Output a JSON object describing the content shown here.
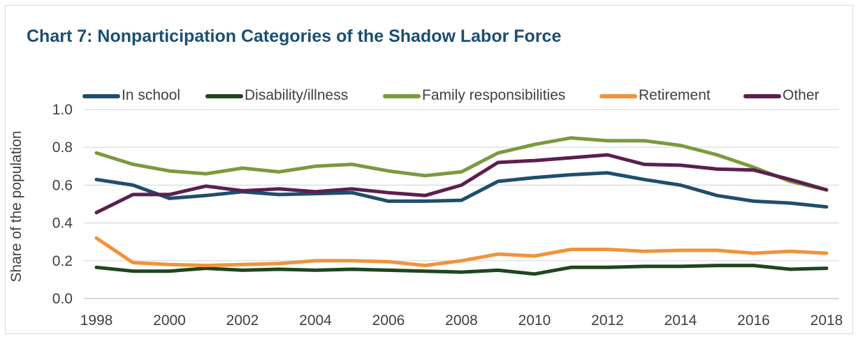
{
  "chart_data": {
    "type": "line",
    "title": "Chart 7: Nonparticipation Categories of the Shadow Labor Force",
    "xlabel": "",
    "ylabel": "Share of the population",
    "ylim": [
      0.0,
      1.0
    ],
    "yticks": [
      "0.0",
      "0.2",
      "0.4",
      "0.6",
      "0.8",
      "1.0"
    ],
    "xticks": [
      "1998",
      "2000",
      "2002",
      "2004",
      "2006",
      "2008",
      "2010",
      "2012",
      "2014",
      "2016",
      "2018"
    ],
    "grid": true,
    "legend_position": "top",
    "x": [
      1998,
      1999,
      2000,
      2001,
      2002,
      2003,
      2004,
      2005,
      2006,
      2007,
      2008,
      2009,
      2010,
      2011,
      2012,
      2013,
      2014,
      2015,
      2016,
      2017,
      2018
    ],
    "series": [
      {
        "name": "In school",
        "color": "#1f4e6e",
        "values": [
          0.63,
          0.6,
          0.53,
          0.545,
          0.565,
          0.55,
          0.555,
          0.56,
          0.515,
          0.515,
          0.52,
          0.62,
          0.64,
          0.655,
          0.665,
          0.63,
          0.6,
          0.545,
          0.515,
          0.505,
          0.485
        ]
      },
      {
        "name": "Disability/illness",
        "color": "#1e4620",
        "values": [
          0.165,
          0.145,
          0.145,
          0.16,
          0.15,
          0.155,
          0.15,
          0.155,
          0.15,
          0.145,
          0.14,
          0.15,
          0.13,
          0.165,
          0.165,
          0.17,
          0.17,
          0.175,
          0.175,
          0.155,
          0.16
        ]
      },
      {
        "name": "Family responsibilities",
        "color": "#7b9a3c",
        "values": [
          0.77,
          0.71,
          0.675,
          0.66,
          0.69,
          0.67,
          0.7,
          0.71,
          0.675,
          0.65,
          0.67,
          0.77,
          0.815,
          0.85,
          0.835,
          0.835,
          0.81,
          0.76,
          0.695,
          0.62,
          0.575
        ]
      },
      {
        "name": "Retirement",
        "color": "#f2923a",
        "values": [
          0.32,
          0.19,
          0.18,
          0.175,
          0.18,
          0.185,
          0.2,
          0.2,
          0.195,
          0.175,
          0.2,
          0.235,
          0.225,
          0.26,
          0.26,
          0.25,
          0.255,
          0.255,
          0.24,
          0.25,
          0.24
        ]
      },
      {
        "name": "Other",
        "color": "#5b1f4e",
        "values": [
          0.455,
          0.55,
          0.55,
          0.595,
          0.57,
          0.58,
          0.565,
          0.58,
          0.56,
          0.545,
          0.6,
          0.72,
          0.73,
          0.745,
          0.76,
          0.71,
          0.705,
          0.685,
          0.68,
          0.63,
          0.575
        ]
      }
    ]
  }
}
